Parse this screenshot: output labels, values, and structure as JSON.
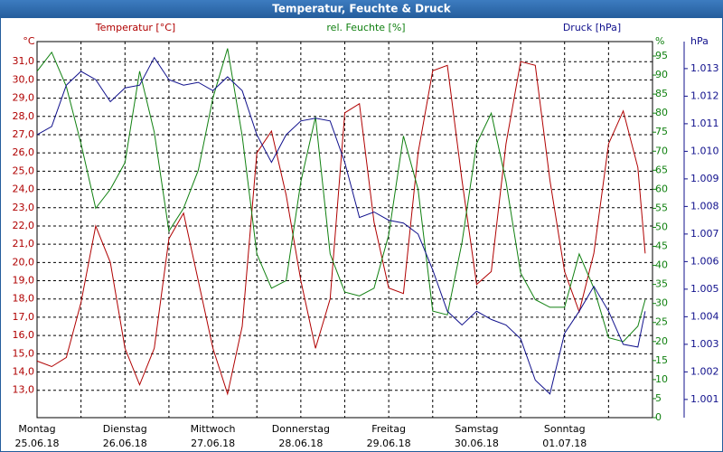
{
  "chart_data": {
    "type": "line",
    "title": "Temperatur, Feuchte & Druck",
    "grid": true,
    "x": [
      0,
      4,
      8,
      12,
      16,
      20,
      24,
      28,
      32,
      36,
      40,
      44,
      48,
      52,
      56,
      60,
      64,
      68,
      72,
      76,
      80,
      84,
      88,
      92,
      96,
      100,
      104,
      108,
      112,
      116,
      120,
      124,
      128,
      132,
      136,
      140,
      144,
      148,
      152,
      156,
      160,
      164,
      166
    ],
    "xlim": [
      0,
      168
    ],
    "xticks": [
      {
        "value": 0,
        "label": "Montag",
        "date": "25.06.18"
      },
      {
        "value": 24,
        "label": "Dienstag",
        "date": "26.06.18"
      },
      {
        "value": 48,
        "label": "Mittwoch",
        "date": "27.06.18"
      },
      {
        "value": 72,
        "label": "Donnerstag",
        "date": "28.06.18"
      },
      {
        "value": 96,
        "label": "Freitag",
        "date": "29.06.18"
      },
      {
        "value": 120,
        "label": "Samstag",
        "date": "30.06.18"
      },
      {
        "value": 144,
        "label": "Sonntag",
        "date": "01.07.18"
      }
    ],
    "ylim": [
      11.5,
      32.1
    ],
    "yticks": [
      {
        "value": 13,
        "label": "13,0"
      },
      {
        "value": 14,
        "label": "14,0"
      },
      {
        "value": 15,
        "label": "15,0"
      },
      {
        "value": 16,
        "label": "16,0"
      },
      {
        "value": 17,
        "label": "17,0"
      },
      {
        "value": 18,
        "label": "18,0"
      },
      {
        "value": 19,
        "label": "19,0"
      },
      {
        "value": 20,
        "label": "20,0"
      },
      {
        "value": 21,
        "label": "21,0"
      },
      {
        "value": 22,
        "label": "22,0"
      },
      {
        "value": 23,
        "label": "23,0"
      },
      {
        "value": 24,
        "label": "24,0"
      },
      {
        "value": 25,
        "label": "25,0"
      },
      {
        "value": 26,
        "label": "26,0"
      },
      {
        "value": 27,
        "label": "27,0"
      },
      {
        "value": 28,
        "label": "28,0"
      },
      {
        "value": 29,
        "label": "29,0"
      },
      {
        "value": 30,
        "label": "30,0"
      },
      {
        "value": 31,
        "label": "31,0"
      }
    ],
    "y2lim": [
      0,
      98.8
    ],
    "y2ticks": [
      0,
      5,
      10,
      15,
      20,
      25,
      30,
      35,
      40,
      45,
      50,
      55,
      60,
      65,
      70,
      75,
      80,
      85,
      90,
      95
    ],
    "y3lim": [
      1.00034,
      1.01398
    ],
    "y3ticks": [
      1.001,
      1.002,
      1.003,
      1.004,
      1.005,
      1.006,
      1.007,
      1.008,
      1.009,
      {
        "value": 1.01,
        "label": "1.010"
      },
      1.011,
      1.012,
      1.013
    ],
    "series": [
      {
        "name": "Temperatur [°C]",
        "unit": "°C",
        "axis": "y",
        "color": "#b00000",
        "values": [
          14.6,
          14.3,
          14.8,
          17.8,
          22.0,
          20.0,
          15.3,
          13.3,
          15.3,
          21.3,
          22.7,
          19.0,
          15.3,
          12.8,
          16.5,
          26.0,
          27.2,
          23.7,
          19.0,
          15.3,
          18.0,
          28.2,
          28.7,
          22.2,
          18.6,
          18.3,
          26.0,
          30.5,
          30.8,
          24.5,
          18.8,
          19.5,
          26.5,
          31.0,
          30.8,
          24.5,
          19.5,
          17.3,
          20.5,
          26.5,
          28.3,
          25.2,
          20.5
        ]
      },
      {
        "name": "rel. Feuchte [%]",
        "unit": "%",
        "axis": "y2",
        "color": "#108010",
        "values": [
          91,
          96,
          87,
          72,
          55,
          60,
          67,
          91,
          75,
          49,
          55,
          65,
          84,
          97,
          74,
          43,
          34,
          36,
          62,
          79,
          43,
          33,
          32,
          34,
          48,
          74,
          60,
          28,
          27,
          46,
          72,
          80,
          62,
          38,
          31,
          29,
          29,
          43,
          34,
          21,
          20,
          24,
          31
        ]
      },
      {
        "name": "Druck [hPa]",
        "unit": "hPa",
        "axis": "y3",
        "color": "#10108c",
        "values": [
          1.0106,
          1.0109,
          1.0124,
          1.0129,
          1.0126,
          1.0118,
          1.0123,
          1.0124,
          1.0134,
          1.0126,
          1.0124,
          1.0125,
          1.0122,
          1.0127,
          1.0122,
          1.0106,
          1.0096,
          1.0106,
          1.0111,
          1.0112,
          1.0111,
          1.0096,
          1.0076,
          1.0078,
          1.0075,
          1.0074,
          1.007,
          1.0057,
          1.0042,
          1.0037,
          1.0042,
          1.0039,
          1.0037,
          1.0032,
          1.0017,
          1.0012,
          1.0034,
          1.0042,
          1.0051,
          1.0042,
          1.003,
          1.0029,
          1.0042
        ]
      }
    ]
  }
}
